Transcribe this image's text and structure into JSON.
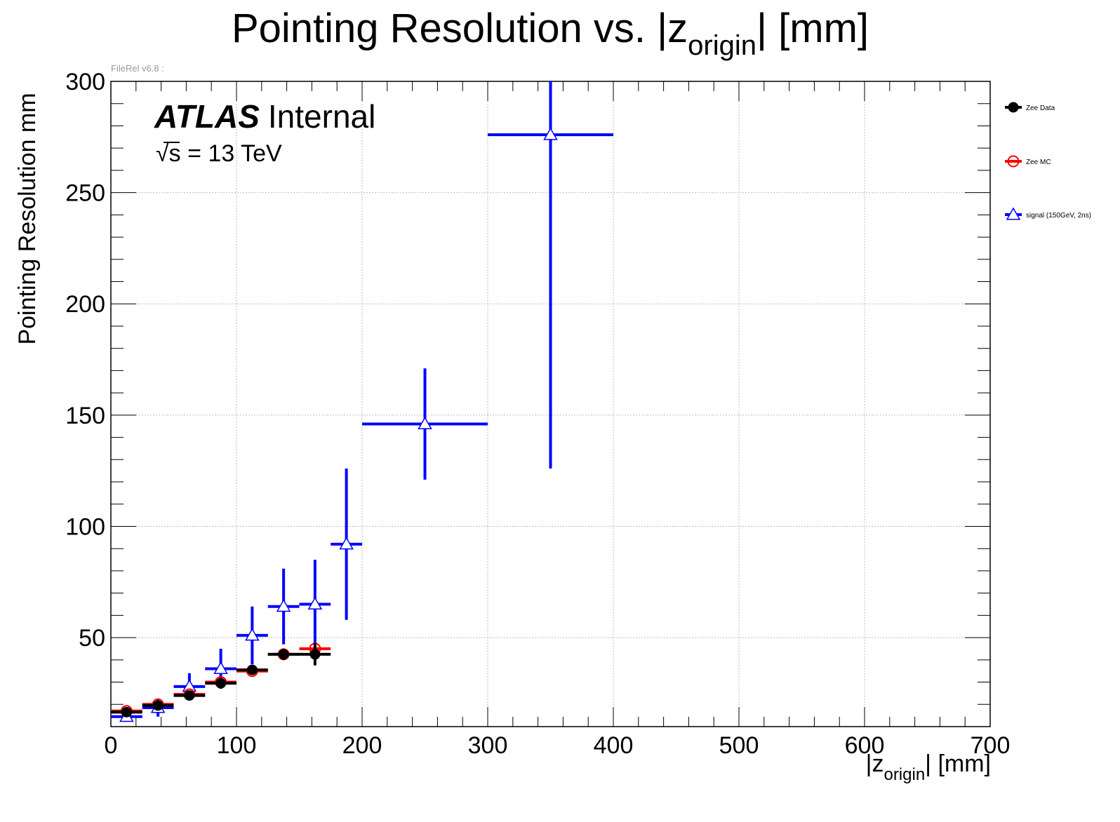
{
  "page": {
    "title_main": "Pointing Resolution vs. |z",
    "title_sub": "origin",
    "title_tail": "| [mm]",
    "file_label": "FileRel v6.8 :"
  },
  "atlas": {
    "bold": "ATLAS",
    "normal": "Internal",
    "sqrt_symbol": "√",
    "energy_tail": "s = 13 TeV"
  },
  "chart_data": {
    "type": "scatter",
    "title": "Pointing Resolution vs. |z origin| [mm]",
    "xlabel": "|z origin| [mm]",
    "ylabel": "Pointing Resolution mm",
    "xlim": [
      0,
      700
    ],
    "ylim": [
      10,
      300
    ],
    "grid": true,
    "legend_position": "right",
    "x_ticks": [
      "0",
      "100",
      "200",
      "300",
      "400",
      "500",
      "600",
      "700"
    ],
    "y_ticks": [
      "50",
      "100",
      "150",
      "200",
      "250",
      "300"
    ],
    "series": [
      {
        "name": "Zee Data",
        "color": "#000000",
        "marker": "filled-circle",
        "points": [
          {
            "x": 12.5,
            "xerr": 12.5,
            "y": 16.5,
            "yerr": 1.5
          },
          {
            "x": 37.5,
            "xerr": 12.5,
            "y": 19.5,
            "yerr": 1.5
          },
          {
            "x": 62.5,
            "xerr": 12.5,
            "y": 24,
            "yerr": 1.5
          },
          {
            "x": 87.5,
            "xerr": 12.5,
            "y": 29.5,
            "yerr": 2
          },
          {
            "x": 112.5,
            "xerr": 12.5,
            "y": 35.5,
            "yerr": 2
          },
          {
            "x": 137.5,
            "xerr": 12.5,
            "y": 42.5,
            "yerr": 2.5
          },
          {
            "x": 162.5,
            "xerr": 12.5,
            "y": 42.5,
            "yerr": 5
          }
        ]
      },
      {
        "name": "Zee MC",
        "color": "#ff0000",
        "marker": "open-circle",
        "points": [
          {
            "x": 12.5,
            "xerr": 12.5,
            "y": 17,
            "yerr": 0.5
          },
          {
            "x": 37.5,
            "xerr": 12.5,
            "y": 20,
            "yerr": 0.5
          },
          {
            "x": 62.5,
            "xerr": 12.5,
            "y": 24.5,
            "yerr": 0.5
          },
          {
            "x": 87.5,
            "xerr": 12.5,
            "y": 30,
            "yerr": 0.5
          },
          {
            "x": 112.5,
            "xerr": 12.5,
            "y": 35,
            "yerr": 0.5
          },
          {
            "x": 137.5,
            "xerr": 12.5,
            "y": 42.5,
            "yerr": 0.5
          },
          {
            "x": 162.5,
            "xerr": 12.5,
            "y": 45,
            "yerr": 0.5
          }
        ]
      },
      {
        "name": "signal (150GeV, 2ns)",
        "color": "#0000ff",
        "marker": "open-triangle",
        "points": [
          {
            "x": 12.5,
            "xerr": 12.5,
            "y": 14.5,
            "yerr": 2
          },
          {
            "x": 37.5,
            "xerr": 12.5,
            "y": 18.5,
            "yerr": 4
          },
          {
            "x": 62.5,
            "xerr": 12.5,
            "y": 28,
            "yerr": 6
          },
          {
            "x": 87.5,
            "xerr": 12.5,
            "y": 36,
            "yerr": 9
          },
          {
            "x": 112.5,
            "xerr": 12.5,
            "y": 51,
            "yerr": 13
          },
          {
            "x": 137.5,
            "xerr": 12.5,
            "y": 64,
            "yerr": 17
          },
          {
            "x": 162.5,
            "xerr": 12.5,
            "y": 65,
            "yerr": 20
          },
          {
            "x": 187.5,
            "xerr": 12.5,
            "y": 92,
            "yerr": 34
          },
          {
            "x": 250,
            "xerr": 50,
            "y": 146,
            "yerr": 25
          },
          {
            "x": 350,
            "xerr": 50,
            "y": 276,
            "yerr": 150
          }
        ]
      }
    ]
  }
}
